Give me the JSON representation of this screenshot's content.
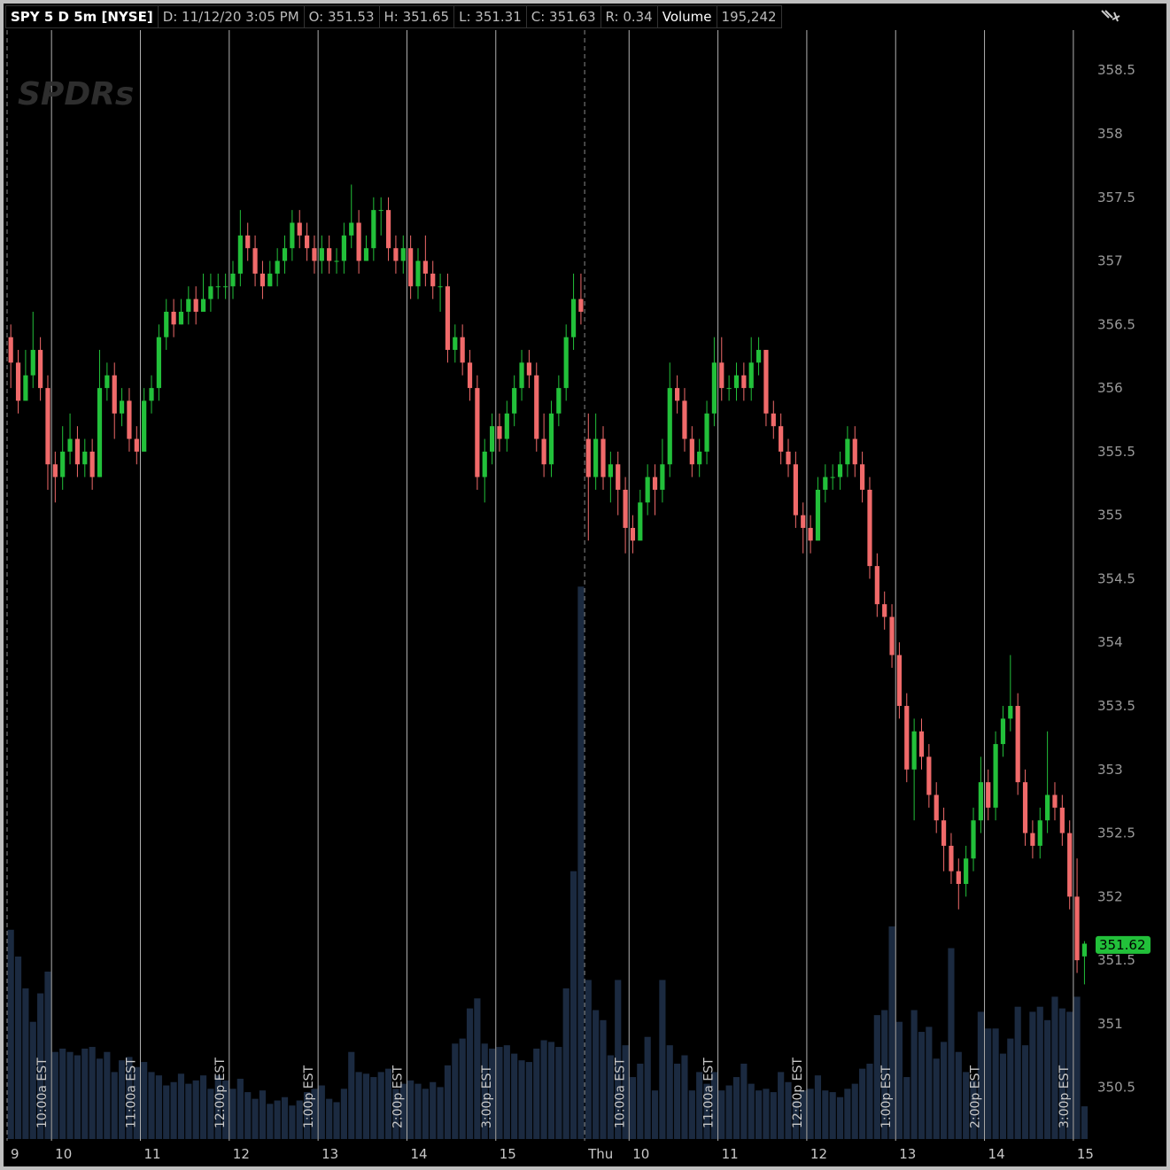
{
  "chart_data": {
    "type": "candlestick",
    "header": [
      "SPY 5 D 5m [NYSE]",
      "D: 11/12/20 3:05 PM",
      "O: 351.53",
      "H: 351.65",
      "L: 351.31",
      "C: 351.63",
      "R: 0.34",
      "Volume",
      "195,242"
    ],
    "watermark": "SPDRs",
    "up_color": "#22c03a",
    "down_color": "#f06a6a",
    "volume_color": "#1b2a40",
    "ylim": [
      350.08,
      359.01
    ],
    "yticks": [
      350.5,
      351,
      351.5,
      352,
      352.5,
      353,
      353.5,
      354,
      354.5,
      355,
      355.5,
      356,
      356.5,
      357,
      357.5,
      358,
      358.5
    ],
    "xlim": [
      0,
      146
    ],
    "xticks": [
      {
        "value": 0,
        "label": "9"
      },
      {
        "value": 6,
        "label": "10"
      },
      {
        "value": 18,
        "label": "11"
      },
      {
        "value": 30,
        "label": "12"
      },
      {
        "value": 42,
        "label": "13"
      },
      {
        "value": 54,
        "label": "14"
      },
      {
        "value": 66,
        "label": "15"
      },
      {
        "value": 78,
        "label": "Thu"
      },
      {
        "value": 84,
        "label": "10"
      },
      {
        "value": 96,
        "label": "11"
      },
      {
        "value": 108,
        "label": "12"
      },
      {
        "value": 120,
        "label": "13"
      },
      {
        "value": 132,
        "label": "14"
      },
      {
        "value": 144,
        "label": "15"
      }
    ],
    "session_lines": [
      {
        "value": 6,
        "label": "10:00a EST"
      },
      {
        "value": 18,
        "label": "11:00a EST"
      },
      {
        "value": 30,
        "label": "12:00p EST"
      },
      {
        "value": 42,
        "label": "1:00p EST"
      },
      {
        "value": 54,
        "label": "2:00p EST"
      },
      {
        "value": 66,
        "label": "3:00p EST"
      },
      {
        "value": 84,
        "label": "10:00a EST"
      },
      {
        "value": 96,
        "label": "11:00a EST"
      },
      {
        "value": 108,
        "label": "12:00p EST"
      },
      {
        "value": 120,
        "label": "1:00p EST"
      },
      {
        "value": 132,
        "label": "2:00p EST"
      },
      {
        "value": 144,
        "label": "3:00p EST"
      }
    ],
    "day_lines": [
      0,
      78
    ],
    "last_price": 351.62,
    "volume_lim": [
      0,
      3500000
    ],
    "ohlc": [
      [
        356.4,
        356.5,
        356.0,
        356.2
      ],
      [
        356.2,
        356.3,
        355.8,
        355.9
      ],
      [
        355.9,
        356.3,
        355.9,
        356.1
      ],
      [
        356.1,
        356.6,
        356.0,
        356.3
      ],
      [
        356.3,
        356.4,
        355.9,
        356.0
      ],
      [
        356.0,
        356.1,
        355.2,
        355.4
      ],
      [
        355.4,
        355.5,
        355.1,
        355.3
      ],
      [
        355.3,
        355.7,
        355.2,
        355.5
      ],
      [
        355.5,
        355.8,
        355.4,
        355.6
      ],
      [
        355.6,
        355.7,
        355.3,
        355.4
      ],
      [
        355.4,
        355.6,
        355.3,
        355.5
      ],
      [
        355.5,
        355.6,
        355.2,
        355.3
      ],
      [
        355.3,
        356.3,
        355.3,
        356.0
      ],
      [
        356.0,
        356.2,
        355.9,
        356.1
      ],
      [
        356.1,
        356.2,
        355.6,
        355.8
      ],
      [
        355.8,
        356.0,
        355.7,
        355.9
      ],
      [
        355.9,
        356.0,
        355.5,
        355.6
      ],
      [
        355.6,
        355.7,
        355.4,
        355.5
      ],
      [
        355.5,
        356.0,
        355.5,
        355.9
      ],
      [
        355.9,
        356.1,
        355.8,
        356.0
      ],
      [
        356.0,
        356.5,
        355.9,
        356.4
      ],
      [
        356.4,
        356.7,
        356.3,
        356.6
      ],
      [
        356.6,
        356.7,
        356.4,
        356.5
      ],
      [
        356.5,
        356.7,
        356.5,
        356.6
      ],
      [
        356.6,
        356.8,
        356.5,
        356.7
      ],
      [
        356.7,
        356.8,
        356.5,
        356.6
      ],
      [
        356.6,
        356.9,
        356.6,
        356.7
      ],
      [
        356.7,
        356.9,
        356.6,
        356.8
      ],
      [
        356.8,
        356.9,
        356.7,
        356.8
      ],
      [
        356.8,
        356.9,
        356.7,
        356.8
      ],
      [
        356.8,
        357.0,
        356.7,
        356.9
      ],
      [
        356.9,
        357.4,
        356.8,
        357.2
      ],
      [
        357.2,
        357.3,
        357.0,
        357.1
      ],
      [
        357.1,
        357.2,
        356.8,
        356.9
      ],
      [
        356.9,
        357.0,
        356.7,
        356.8
      ],
      [
        356.8,
        357.0,
        356.8,
        356.9
      ],
      [
        356.9,
        357.1,
        356.8,
        357.0
      ],
      [
        357.0,
        357.2,
        356.9,
        357.1
      ],
      [
        357.1,
        357.4,
        357.0,
        357.3
      ],
      [
        357.3,
        357.4,
        357.1,
        357.2
      ],
      [
        357.2,
        357.3,
        357.0,
        357.1
      ],
      [
        357.1,
        357.2,
        356.9,
        357.0
      ],
      [
        357.0,
        357.2,
        356.9,
        357.1
      ],
      [
        357.1,
        357.2,
        356.9,
        357.0
      ],
      [
        357.0,
        357.1,
        356.9,
        357.0
      ],
      [
        357.0,
        357.3,
        356.9,
        357.2
      ],
      [
        357.2,
        357.6,
        357.1,
        357.3
      ],
      [
        357.3,
        357.4,
        356.9,
        357.0
      ],
      [
        357.0,
        357.2,
        357.0,
        357.1
      ],
      [
        357.1,
        357.5,
        357.0,
        357.4
      ],
      [
        357.4,
        357.5,
        357.2,
        357.4
      ],
      [
        357.4,
        357.5,
        357.0,
        357.1
      ],
      [
        357.1,
        357.2,
        356.9,
        357.0
      ],
      [
        357.0,
        357.2,
        356.9,
        357.1
      ],
      [
        357.1,
        357.2,
        356.7,
        356.8
      ],
      [
        356.8,
        357.1,
        356.7,
        357.0
      ],
      [
        357.0,
        357.2,
        356.8,
        356.9
      ],
      [
        356.9,
        357.0,
        356.7,
        356.8
      ],
      [
        356.8,
        356.9,
        356.6,
        356.8
      ],
      [
        356.8,
        356.9,
        356.2,
        356.3
      ],
      [
        356.3,
        356.5,
        356.2,
        356.4
      ],
      [
        356.4,
        356.5,
        356.1,
        356.2
      ],
      [
        356.2,
        356.3,
        355.9,
        356.0
      ],
      [
        356.0,
        356.1,
        355.2,
        355.3
      ],
      [
        355.3,
        355.6,
        355.1,
        355.5
      ],
      [
        355.5,
        355.8,
        355.4,
        355.7
      ],
      [
        355.7,
        355.8,
        355.5,
        355.6
      ],
      [
        355.6,
        355.9,
        355.5,
        355.8
      ],
      [
        355.8,
        356.1,
        355.7,
        356.0
      ],
      [
        356.0,
        356.3,
        355.9,
        356.2
      ],
      [
        356.2,
        356.3,
        356.0,
        356.1
      ],
      [
        356.1,
        356.2,
        355.5,
        355.6
      ],
      [
        355.6,
        355.8,
        355.3,
        355.4
      ],
      [
        355.4,
        355.9,
        355.3,
        355.8
      ],
      [
        355.8,
        356.1,
        355.7,
        356.0
      ],
      [
        356.0,
        356.5,
        355.9,
        356.4
      ],
      [
        356.4,
        356.9,
        356.3,
        356.7
      ],
      [
        356.7,
        356.9,
        356.5,
        356.6
      ],
      [
        355.6,
        355.8,
        354.8,
        355.3
      ],
      [
        355.3,
        355.8,
        355.2,
        355.6
      ],
      [
        355.6,
        355.7,
        355.2,
        355.3
      ],
      [
        355.3,
        355.5,
        355.1,
        355.4
      ],
      [
        355.4,
        355.5,
        355.0,
        355.2
      ],
      [
        355.2,
        355.3,
        354.7,
        354.9
      ],
      [
        354.9,
        355.0,
        354.7,
        354.8
      ],
      [
        354.8,
        355.2,
        354.8,
        355.1
      ],
      [
        355.1,
        355.4,
        355.0,
        355.3
      ],
      [
        355.3,
        355.4,
        355.0,
        355.2
      ],
      [
        355.2,
        355.6,
        355.1,
        355.4
      ],
      [
        355.4,
        356.2,
        355.3,
        356.0
      ],
      [
        356.0,
        356.1,
        355.8,
        355.9
      ],
      [
        355.9,
        356.0,
        355.5,
        355.6
      ],
      [
        355.6,
        355.7,
        355.3,
        355.4
      ],
      [
        355.4,
        355.6,
        355.3,
        355.5
      ],
      [
        355.5,
        355.9,
        355.4,
        355.8
      ],
      [
        355.8,
        356.4,
        355.7,
        356.2
      ],
      [
        356.2,
        356.4,
        355.9,
        356.0
      ],
      [
        356.0,
        356.1,
        355.9,
        356.0
      ],
      [
        356.0,
        356.2,
        355.9,
        356.1
      ],
      [
        356.1,
        356.2,
        355.9,
        356.0
      ],
      [
        356.0,
        356.4,
        355.9,
        356.2
      ],
      [
        356.2,
        356.4,
        356.1,
        356.3
      ],
      [
        356.3,
        356.3,
        355.7,
        355.8
      ],
      [
        355.8,
        355.9,
        355.6,
        355.7
      ],
      [
        355.7,
        355.8,
        355.4,
        355.5
      ],
      [
        355.5,
        355.6,
        355.3,
        355.4
      ],
      [
        355.4,
        355.5,
        354.9,
        355.0
      ],
      [
        355.0,
        355.1,
        354.7,
        354.9
      ],
      [
        354.9,
        355.0,
        354.7,
        354.8
      ],
      [
        354.8,
        355.3,
        354.8,
        355.2
      ],
      [
        355.2,
        355.4,
        355.1,
        355.3
      ],
      [
        355.3,
        355.4,
        355.2,
        355.3
      ],
      [
        355.3,
        355.5,
        355.2,
        355.4
      ],
      [
        355.4,
        355.7,
        355.3,
        355.6
      ],
      [
        355.6,
        355.7,
        355.3,
        355.4
      ],
      [
        355.4,
        355.5,
        355.1,
        355.2
      ],
      [
        355.2,
        355.3,
        354.5,
        354.6
      ],
      [
        354.6,
        354.7,
        354.2,
        354.3
      ],
      [
        354.3,
        354.4,
        354.1,
        354.2
      ],
      [
        354.2,
        354.3,
        353.8,
        353.9
      ],
      [
        353.9,
        354.0,
        353.4,
        353.5
      ],
      [
        353.5,
        353.6,
        352.9,
        353.0
      ],
      [
        353.0,
        353.4,
        352.6,
        353.3
      ],
      [
        353.3,
        353.4,
        353.0,
        353.1
      ],
      [
        353.1,
        353.2,
        352.7,
        352.8
      ],
      [
        352.8,
        352.9,
        352.5,
        352.6
      ],
      [
        352.6,
        352.7,
        352.2,
        352.4
      ],
      [
        352.4,
        352.5,
        352.1,
        352.2
      ],
      [
        352.2,
        352.3,
        351.9,
        352.1
      ],
      [
        352.1,
        352.4,
        352.0,
        352.3
      ],
      [
        352.3,
        352.7,
        352.2,
        352.6
      ],
      [
        352.6,
        353.1,
        352.5,
        352.9
      ],
      [
        352.9,
        353.0,
        352.6,
        352.7
      ],
      [
        352.7,
        353.3,
        352.6,
        353.2
      ],
      [
        353.2,
        353.5,
        353.1,
        353.4
      ],
      [
        353.4,
        353.9,
        353.3,
        353.5
      ],
      [
        353.5,
        353.6,
        352.8,
        352.9
      ],
      [
        352.9,
        353.0,
        352.4,
        352.5
      ],
      [
        352.5,
        352.6,
        352.3,
        352.4
      ],
      [
        352.4,
        352.7,
        352.3,
        352.6
      ],
      [
        352.6,
        353.3,
        352.5,
        352.8
      ],
      [
        352.8,
        352.9,
        352.6,
        352.7
      ],
      [
        352.7,
        352.8,
        352.4,
        352.5
      ],
      [
        352.5,
        352.6,
        351.9,
        352.0
      ],
      [
        352.0,
        352.3,
        351.4,
        351.5
      ],
      [
        351.53,
        351.65,
        351.31,
        351.63
      ]
    ],
    "volume": [
      1250000,
      1090000,
      900000,
      700000,
      870000,
      1000000,
      520000,
      540000,
      520000,
      500000,
      540000,
      550000,
      480000,
      520000,
      400000,
      470000,
      490000,
      430000,
      460000,
      400000,
      380000,
      320000,
      340000,
      390000,
      330000,
      350000,
      380000,
      300000,
      380000,
      350000,
      300000,
      360000,
      280000,
      240000,
      290000,
      210000,
      230000,
      250000,
      200000,
      230000,
      280000,
      300000,
      320000,
      240000,
      220000,
      300000,
      520000,
      400000,
      390000,
      370000,
      400000,
      420000,
      300000,
      330000,
      350000,
      330000,
      300000,
      340000,
      310000,
      440000,
      570000,
      600000,
      780000,
      840000,
      570000,
      540000,
      550000,
      560000,
      510000,
      470000,
      460000,
      540000,
      590000,
      580000,
      550000,
      900000,
      1600000,
      3300000,
      950000,
      770000,
      710000,
      500000,
      950000,
      560000,
      370000,
      450000,
      610000,
      290000,
      950000,
      560000,
      450000,
      500000,
      290000,
      400000,
      330000,
      400000,
      290000,
      320000,
      370000,
      450000,
      330000,
      290000,
      300000,
      280000,
      400000,
      340000,
      230000,
      290000,
      300000,
      380000,
      290000,
      280000,
      250000,
      300000,
      330000,
      420000,
      450000,
      740000,
      770000,
      1270000,
      700000,
      370000,
      770000,
      640000,
      670000,
      480000,
      580000,
      1140000,
      520000,
      400000,
      350000,
      760000,
      660000,
      660000,
      510000,
      600000,
      790000,
      560000,
      760000,
      790000,
      710000,
      850000,
      780000,
      760000,
      850000,
      195242
    ]
  }
}
